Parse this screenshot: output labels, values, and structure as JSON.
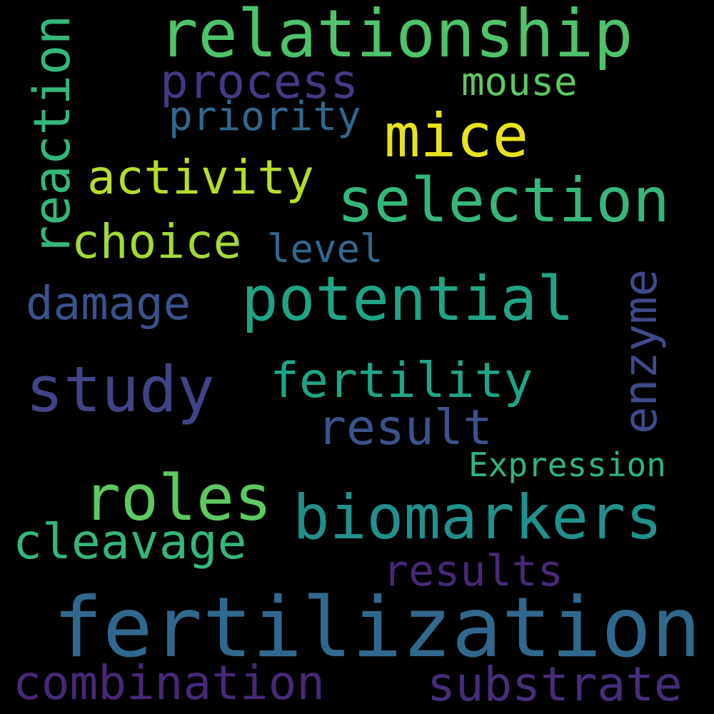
{
  "colors": {
    "background": "#000000",
    "yellow": "#e6e31e",
    "light_green": "#b5de2b",
    "green": "#5ec962",
    "teal_green": "#35b779",
    "teal": "#20a486",
    "cyan_teal": "#21918c",
    "blue": "#31688e",
    "slate": "#3b528b",
    "indigo": "#443983",
    "purple": "#482878"
  },
  "words": {
    "relationship": "relationship",
    "process": "process",
    "mouse": "mouse",
    "priority": "priority",
    "mice": "mice",
    "reaction": "reaction",
    "activity": "activity",
    "selection": "selection",
    "choice": "choice",
    "level": "level",
    "potential": "potential",
    "damage": "damage",
    "enzyme": "enzyme",
    "study": "study",
    "fertility": "fertility",
    "result": "result",
    "expression": "Expression",
    "roles": "roles",
    "biomarkers": "biomarkers",
    "cleavage": "cleavage",
    "results": "results",
    "fertilization": "fertilization",
    "combination": "combination",
    "substrate": "substrate"
  }
}
